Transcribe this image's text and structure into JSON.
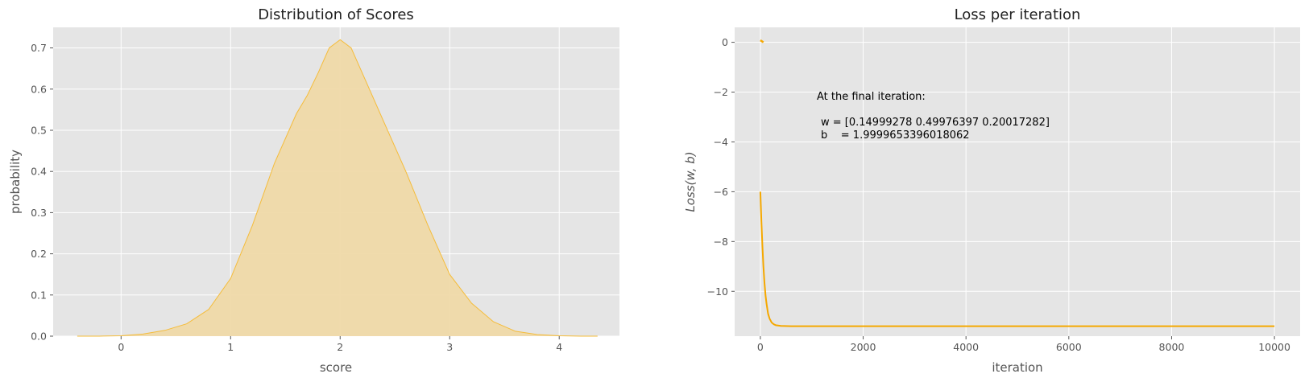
{
  "chart_data": [
    {
      "type": "area",
      "title": "Distribution of Scores",
      "xlabel": "score",
      "ylabel": "probability",
      "xlim": [
        -0.62,
        4.55
      ],
      "ylim": [
        0,
        0.75
      ],
      "xticks": [
        0,
        1,
        2,
        3,
        4
      ],
      "yticks": [
        0.0,
        0.1,
        0.2,
        0.3,
        0.4,
        0.5,
        0.6,
        0.7
      ],
      "grid": true,
      "colors": {
        "fill": "#efd9a8",
        "line": "#f5bc3a",
        "background": "#e5e5e5"
      },
      "series": [
        {
          "x": [
            -0.4,
            -0.2,
            0,
            0.2,
            0.4,
            0.6,
            0.8,
            1.0,
            1.2,
            1.4,
            1.6,
            1.7,
            1.8,
            1.9,
            2.0,
            2.1,
            2.2,
            2.4,
            2.6,
            2.8,
            3.0,
            3.2,
            3.4,
            3.6,
            3.8,
            4.0,
            4.2,
            4.35
          ],
          "y": [
            0.0,
            0.0,
            0.001,
            0.005,
            0.014,
            0.03,
            0.065,
            0.14,
            0.27,
            0.42,
            0.54,
            0.585,
            0.64,
            0.7,
            0.72,
            0.7,
            0.64,
            0.52,
            0.4,
            0.27,
            0.15,
            0.08,
            0.035,
            0.012,
            0.004,
            0.001,
            0.0,
            0.0
          ]
        }
      ]
    },
    {
      "type": "line",
      "title": "Loss per iteration",
      "xlabel": "iteration",
      "ylabel_main": "Loss(w, b)",
      "xlim": [
        -500,
        10500
      ],
      "ylim": [
        -11.8,
        0.6
      ],
      "xticks": [
        0,
        2000,
        4000,
        6000,
        8000,
        10000
      ],
      "yticks": [
        0,
        -2,
        -4,
        -6,
        -8,
        -10
      ],
      "grid": true,
      "colors": {
        "line": "#f5a800",
        "background": "#e5e5e5"
      },
      "series": [
        {
          "x": [
            0,
            20,
            40,
            60,
            80,
            100,
            120,
            150,
            180,
            220,
            260,
            300,
            400,
            600,
            1000,
            2000,
            4000,
            6000,
            8000,
            10000
          ],
          "y": [
            -6.0,
            -7.2,
            -8.2,
            -9.0,
            -9.65,
            -10.15,
            -10.5,
            -10.9,
            -11.1,
            -11.25,
            -11.32,
            -11.36,
            -11.39,
            -11.4,
            -11.4,
            -11.4,
            -11.4,
            -11.4,
            -11.4,
            -11.4
          ]
        },
        {
          "x": [
            0,
            60
          ],
          "y": [
            0.08,
            0.0
          ]
        }
      ],
      "annotation": {
        "line1": "At the final iteration:",
        "line2": "w = [0.14999278 0.49976397 0.20017282]",
        "line3": "b    = 1.9999653396018062"
      }
    }
  ]
}
